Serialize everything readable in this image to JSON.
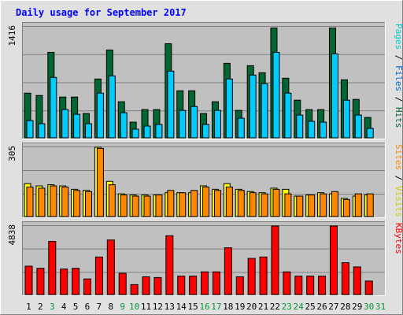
{
  "chart_data": {
    "type": "bar",
    "title": "Daily usage for September 2017",
    "categories": [
      "1",
      "2",
      "3",
      "4",
      "5",
      "6",
      "7",
      "8",
      "9",
      "10",
      "11",
      "12",
      "13",
      "14",
      "15",
      "16",
      "17",
      "18",
      "19",
      "20",
      "21",
      "22",
      "23",
      "24",
      "25",
      "26",
      "27",
      "28",
      "29",
      "30",
      "31"
    ],
    "weekend_days": [
      "3",
      "9",
      "10",
      "16",
      "17",
      "23",
      "24",
      "30",
      "31"
    ],
    "colors": {
      "hits": "#006633",
      "files": "#00ccff",
      "sites": "#ff8800",
      "visits": "#ffff00",
      "kbytes": "#ff0000",
      "background": "#c0c0c0",
      "page_bg": "#e0e0e0",
      "title": "#0000ff",
      "weekday_label": "#000000",
      "weekend_label": "#009933"
    },
    "panels": [
      {
        "id": "hits",
        "max_label": "1416",
        "ylim": [
          0,
          1416
        ],
        "legend": [
          {
            "text": "Pages",
            "color": "#00cccc"
          },
          {
            "text": " / ",
            "color": "#000000"
          },
          {
            "text": "Files",
            "color": "#0066cc"
          },
          {
            "text": " / ",
            "color": "#000000"
          },
          {
            "text": "Hits",
            "color": "#006633"
          }
        ],
        "series": [
          {
            "name": "Hits",
            "color": "#006633",
            "values": [
              570,
              540,
              1090,
              520,
              520,
              310,
              750,
              1120,
              460,
              200,
              360,
              360,
              1200,
              600,
              600,
              310,
              460,
              950,
              350,
              920,
              830,
              1400,
              760,
              480,
              360,
              360,
              1400,
              740,
              490,
              260,
              0
            ]
          },
          {
            "name": "Files",
            "color": "#00ccff",
            "values": [
              220,
              180,
              770,
              360,
              300,
              180,
              570,
              790,
              320,
              110,
              150,
              170,
              850,
              350,
              400,
              170,
              350,
              750,
              250,
              800,
              690,
              1090,
              570,
              290,
              210,
              200,
              1070,
              480,
              290,
              120,
              0
            ]
          }
        ]
      },
      {
        "id": "sites",
        "max_label": "305",
        "ylim": [
          0,
          305
        ],
        "legend": [
          {
            "text": "Sites",
            "color": "#ff8800"
          },
          {
            "text": " / ",
            "color": "#000000"
          },
          {
            "text": "Visits",
            "color": "#cccc00"
          }
        ],
        "series": [
          {
            "name": "Visits",
            "color": "#ffff00",
            "values": [
              145,
              135,
              140,
              135,
              120,
              115,
              305,
              155,
              100,
              95,
              95,
              95,
              105,
              105,
              105,
              135,
              120,
              145,
              120,
              110,
              105,
              125,
              120,
              90,
              95,
              105,
              100,
              80,
              90,
              95,
              0
            ]
          },
          {
            "name": "Sites",
            "color": "#ff8800",
            "values": [
              130,
              125,
              135,
              130,
              115,
              110,
              300,
              140,
              95,
              90,
              90,
              95,
              115,
              105,
              115,
              130,
              115,
              130,
              115,
              105,
              100,
              120,
              100,
              90,
              95,
              100,
              110,
              75,
              100,
              100,
              0
            ]
          }
        ]
      },
      {
        "id": "kbytes",
        "max_label": "4838",
        "ylim": [
          0,
          4838
        ],
        "legend": [
          {
            "text": "KBytes",
            "color": "#ff0000"
          }
        ],
        "series": [
          {
            "name": "KBytes",
            "color": "#ff0000",
            "values": [
              2000,
              1850,
              3750,
              1800,
              1850,
              1100,
              2650,
              3850,
              1500,
              700,
              1250,
              1200,
              4150,
              1300,
              1300,
              1600,
              1600,
              3300,
              1250,
              2550,
              2650,
              4838,
              1600,
              1300,
              1300,
              1300,
              4838,
              2250,
              1950,
              950,
              0
            ]
          }
        ]
      }
    ]
  }
}
